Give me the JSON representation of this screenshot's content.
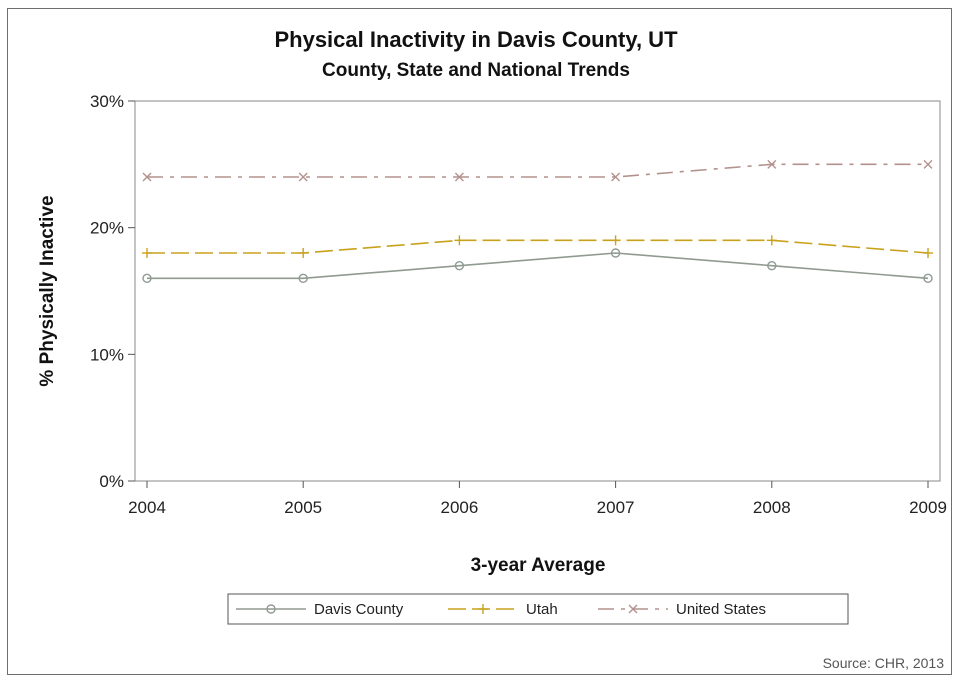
{
  "chart_data": {
    "type": "line",
    "title": "Physical Inactivity in Davis County, UT",
    "subtitle": "County, State and National Trends",
    "xlabel": "3-year Average",
    "ylabel": "% Physically Inactive",
    "x": [
      2004,
      2005,
      2006,
      2007,
      2008,
      2009
    ],
    "x_tick_labels": [
      "2004",
      "2005",
      "2006",
      "2007",
      "2008",
      "2009"
    ],
    "ylim": [
      0,
      30
    ],
    "y_ticks": [
      0,
      10,
      20,
      30
    ],
    "y_tick_labels": [
      "0%",
      "10%",
      "20%",
      "30%"
    ],
    "grid": false,
    "legend_position": "bottom",
    "series": [
      {
        "name": "Davis County",
        "values": [
          16,
          16,
          17,
          18,
          17,
          16
        ],
        "color": "#8f9a91",
        "dash": "solid",
        "marker": "circle"
      },
      {
        "name": "Utah",
        "values": [
          18,
          18,
          19,
          19,
          19,
          18
        ],
        "color": "#c9a21c",
        "dash": "long-dash",
        "marker": "plus"
      },
      {
        "name": "United States",
        "values": [
          24,
          24,
          24,
          24,
          25,
          25
        ],
        "color": "#b3928e",
        "dash": "dash-dot",
        "marker": "x"
      }
    ],
    "source": "Source: CHR, 2013"
  }
}
